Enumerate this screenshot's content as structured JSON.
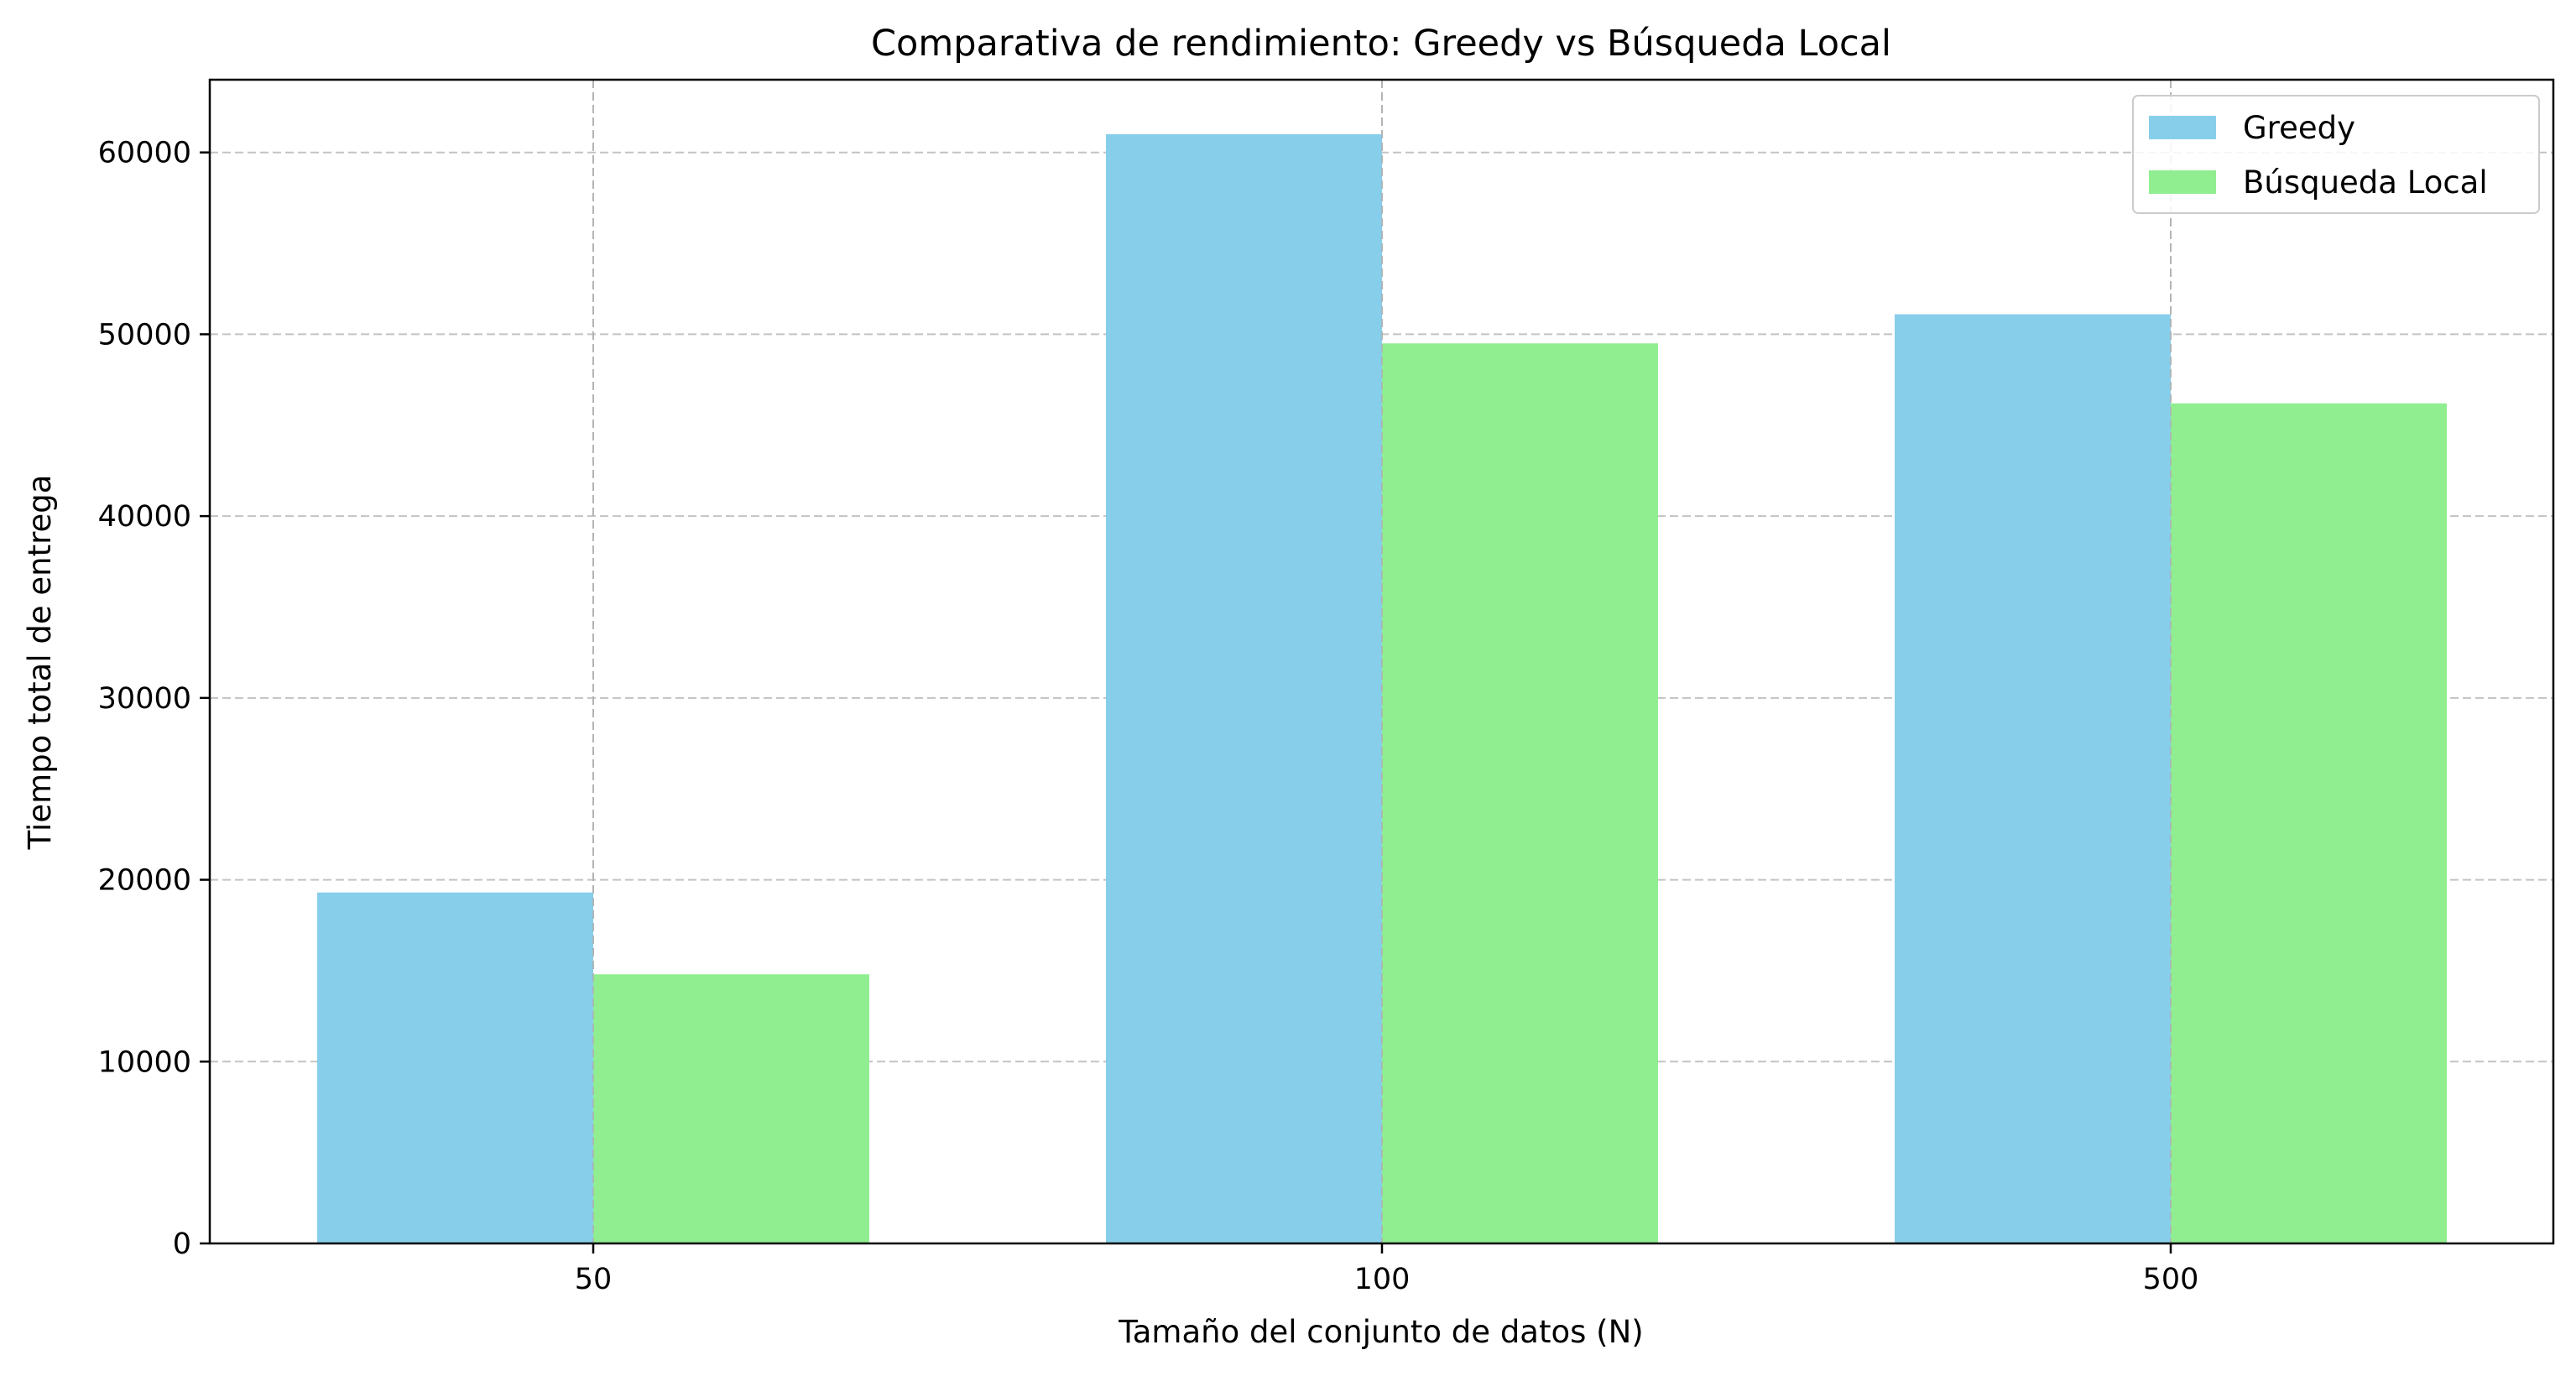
{
  "chart_data": {
    "type": "bar",
    "title": "Comparativa de rendimiento: Greedy vs Búsqueda Local",
    "xlabel": "Tamaño del conjunto de datos (N)",
    "ylabel": "Tiempo total de entrega",
    "categories": [
      "50",
      "100",
      "500"
    ],
    "series": [
      {
        "name": "Greedy",
        "color": "#87ceeb",
        "values": [
          19300,
          61000,
          51100
        ]
      },
      {
        "name": "Búsqueda Local",
        "color": "#90ee90",
        "values": [
          14800,
          49500,
          46200
        ]
      }
    ],
    "ylim": [
      0,
      64000
    ],
    "yticks": [
      0,
      10000,
      20000,
      30000,
      40000,
      50000,
      60000
    ],
    "grid": true,
    "legend_position": "top-right"
  }
}
